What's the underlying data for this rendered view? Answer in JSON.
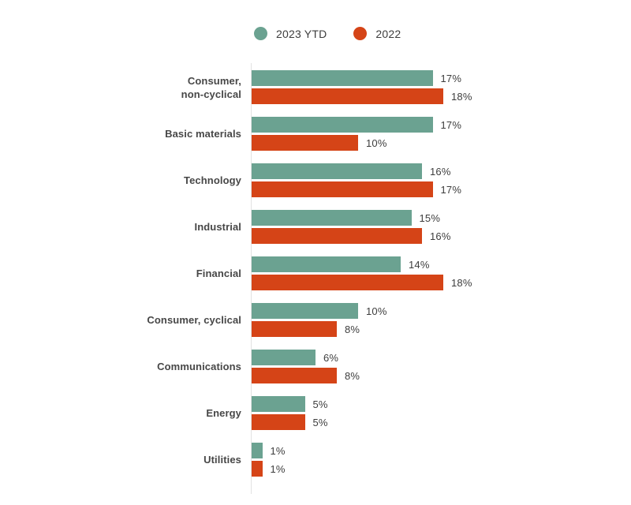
{
  "chart_data": {
    "type": "bar",
    "orientation": "horizontal",
    "title": "",
    "xlabel": "",
    "ylabel": "",
    "xlim": [
      0,
      18
    ],
    "grid": false,
    "legend_position": "top",
    "value_suffix": "%",
    "categories": [
      "Consumer,\nnon-cyclical",
      "Basic materials",
      "Technology",
      "Industrial",
      "Financial",
      "Consumer, cyclical",
      "Communications",
      "Energy",
      "Utilities"
    ],
    "series": [
      {
        "name": "2023 YTD",
        "color": "#6ba291",
        "values": [
          17,
          17,
          16,
          15,
          14,
          10,
          6,
          5,
          1
        ]
      },
      {
        "name": "2022",
        "color": "#d54417",
        "values": [
          18,
          10,
          17,
          16,
          18,
          8,
          8,
          5,
          1
        ]
      }
    ],
    "value_labels": [
      [
        "17%",
        "17%",
        "16%",
        "15%",
        "14%",
        "10%",
        "6%",
        "5%",
        "1%"
      ],
      [
        "18%",
        "10%",
        "17%",
        "16%",
        "18%",
        "8%",
        "8%",
        "5%",
        "1%"
      ]
    ]
  },
  "colors": {
    "series_2023_ytd": "#6ba291",
    "series_2022": "#d54417",
    "axis_line": "#e2e2e2",
    "category_label": "#474747",
    "value_label": "#3d3d3d",
    "background": "#ffffff"
  }
}
